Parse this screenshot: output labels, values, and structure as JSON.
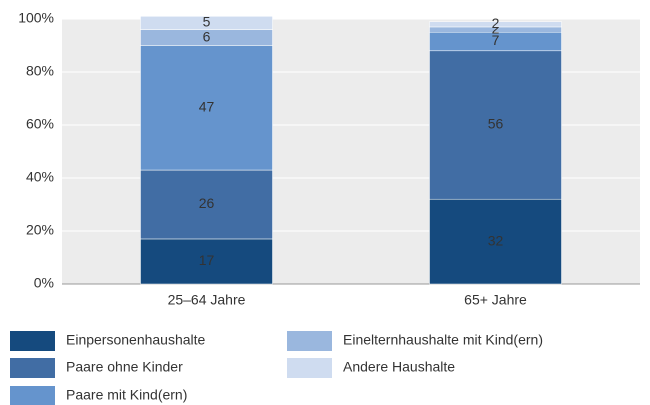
{
  "chart_data": {
    "type": "stacked_bar",
    "categories": [
      "25–64 Jahre",
      "65+ Jahre"
    ],
    "series": [
      {
        "name": "Einpersonenhaushalte",
        "color": "#154a7e",
        "values": [
          17,
          32
        ]
      },
      {
        "name": "Paare ohne Kinder",
        "color": "#416da4",
        "values": [
          26,
          56
        ]
      },
      {
        "name": "Paare mit Kind(ern)",
        "color": "#6594cd",
        "values": [
          47,
          7
        ]
      },
      {
        "name": "Einelternhaushalte mit Kind(ern)",
        "color": "#9ab7de",
        "values": [
          6,
          2
        ]
      },
      {
        "name": "Andere Haushalte",
        "color": "#cfdcf0",
        "values": [
          5,
          2
        ]
      }
    ],
    "ylim": [
      0,
      100
    ],
    "yticks": [
      {
        "value": 0,
        "label": "0%"
      },
      {
        "value": 20,
        "label": "20%"
      },
      {
        "value": 40,
        "label": "40%"
      },
      {
        "value": 60,
        "label": "60%"
      },
      {
        "value": 80,
        "label": "80%"
      },
      {
        "value": 100,
        "label": "100%"
      }
    ],
    "grid": true
  }
}
